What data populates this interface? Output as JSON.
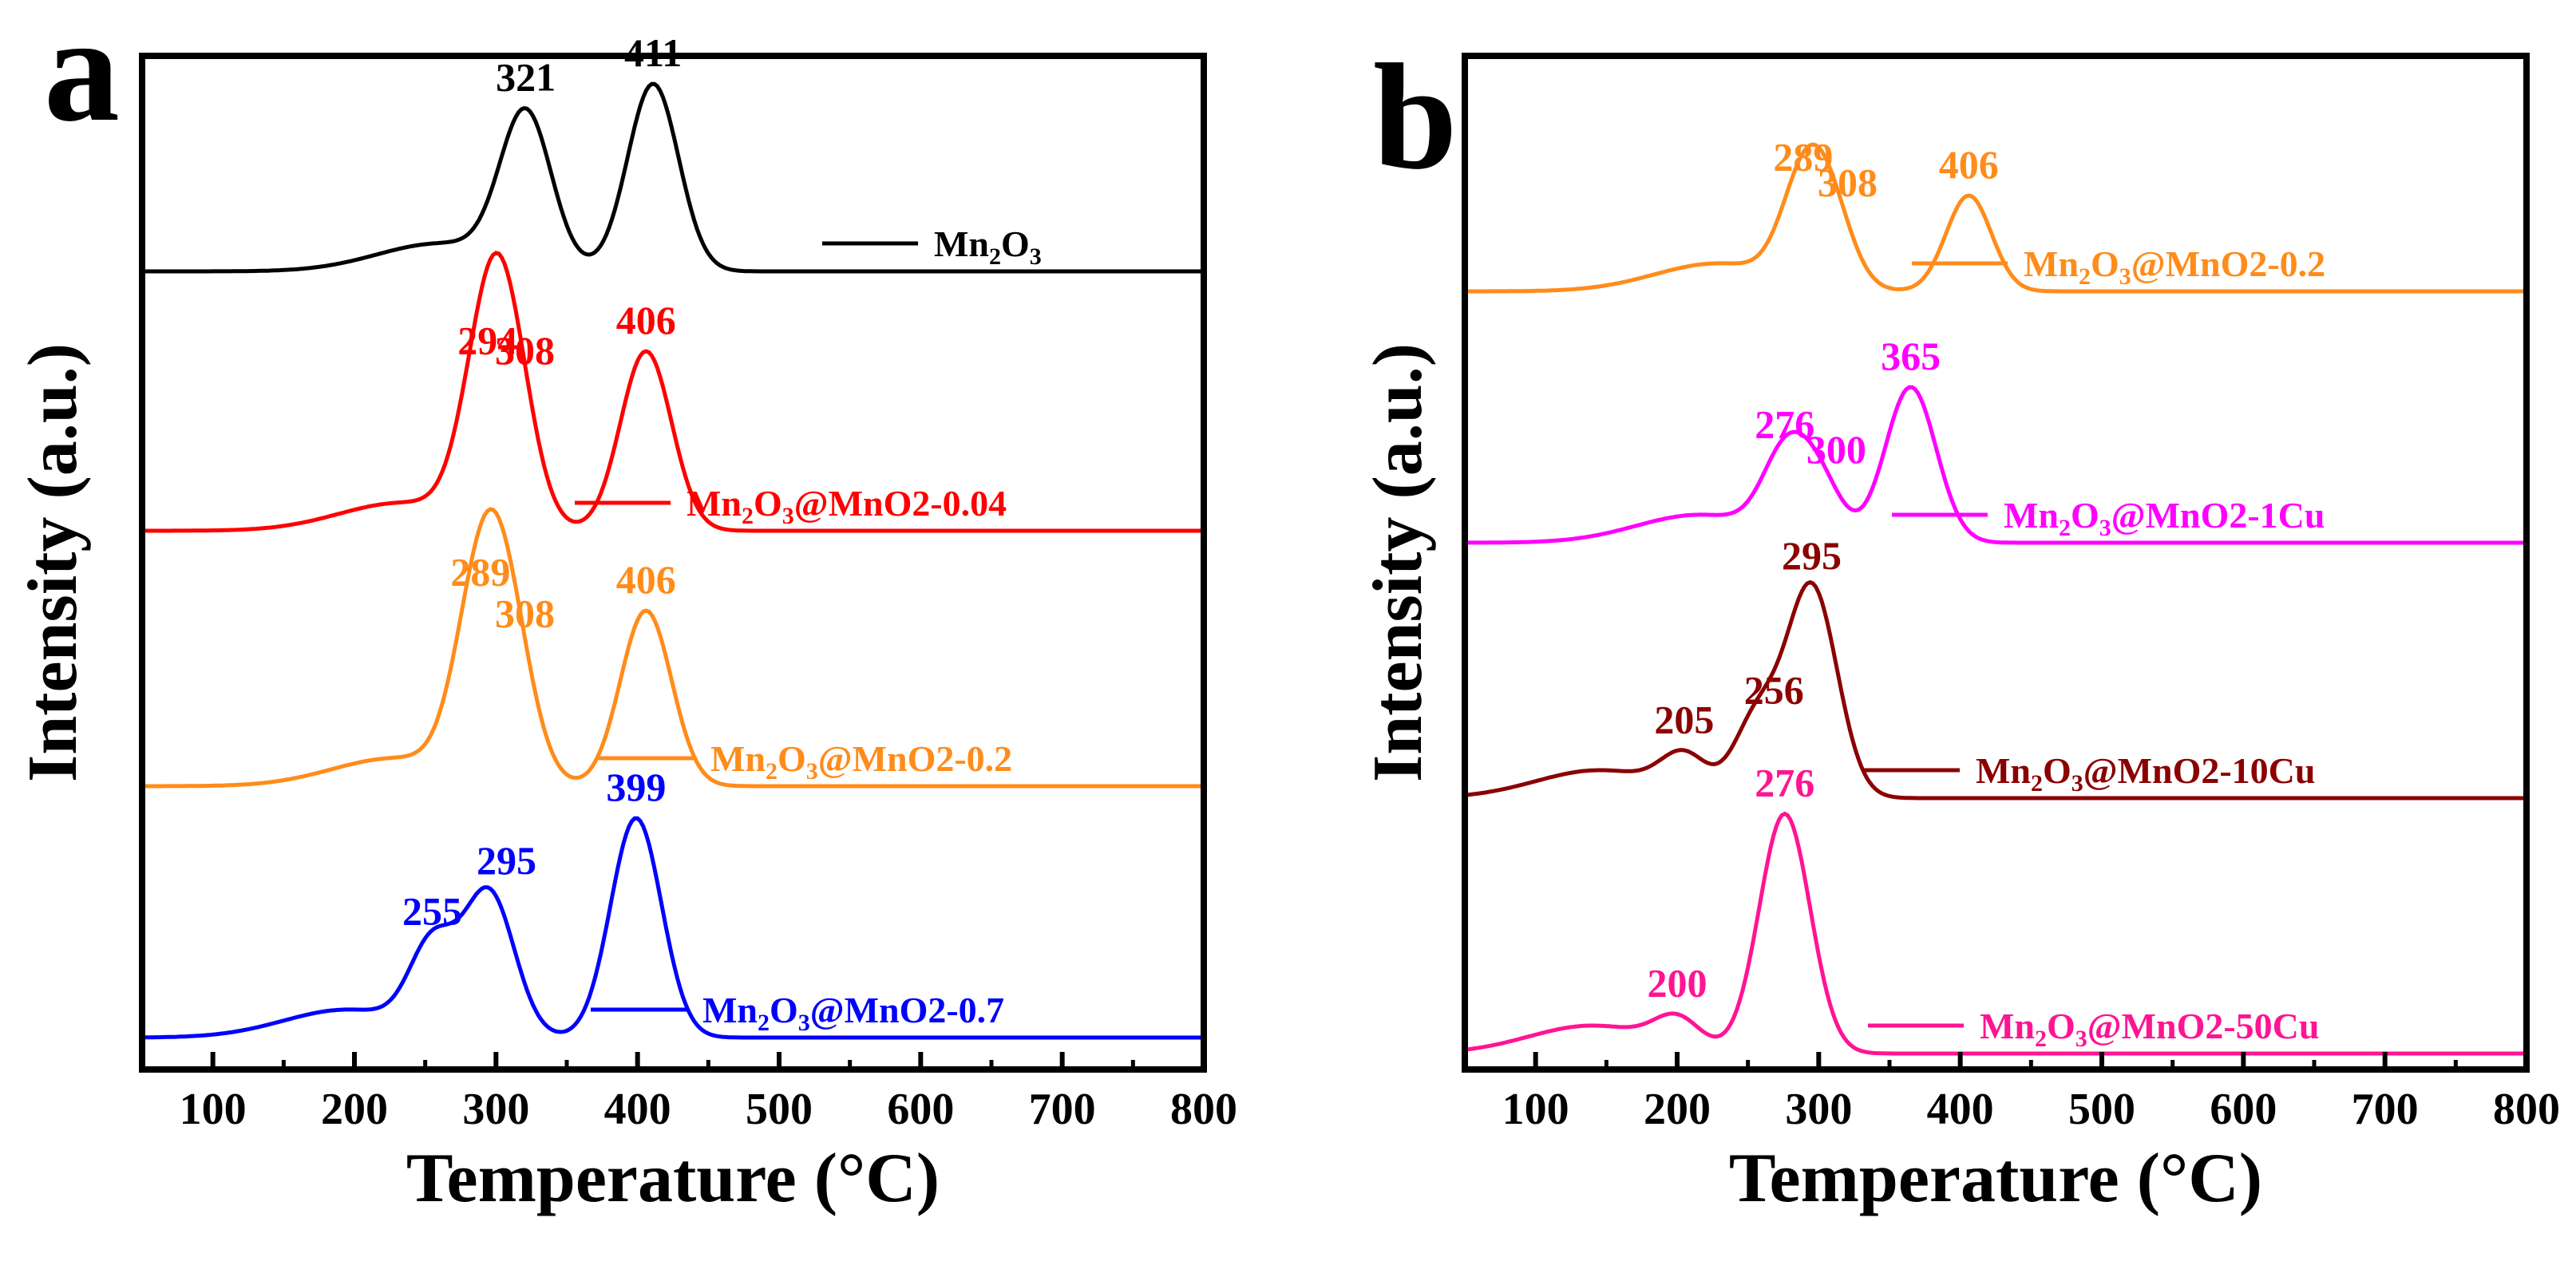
{
  "chart_data": [
    {
      "panel_label": "a",
      "type": "line",
      "xlabel": "Temperature (°C)",
      "ylabel": "Intensity (a.u.)",
      "xlim": [
        50,
        800
      ],
      "xticks": [
        "100",
        "200",
        "300",
        "400",
        "500",
        "600",
        "700",
        "800"
      ],
      "yticks": [],
      "series": [
        {
          "name": "Mn2O3",
          "legend_main": "Mn",
          "legend_sub": "2",
          "legend_tail": "O",
          "legend_sub2": "3",
          "legend_rest": "",
          "color": "#000000",
          "peaks": [
            {
              "x": 321,
              "label": "321",
              "rise": 190
            },
            {
              "x": 411,
              "label": "411",
              "rise": 235
            }
          ]
        },
        {
          "name": "Mn2O3@MnO2-0.04",
          "legend_main": "Mn",
          "legend_sub": "2",
          "legend_tail": "O",
          "legend_sub2": "3",
          "legend_rest": "@MnO2-0.04",
          "color": "#ff0000",
          "peaks": [
            {
              "x": 294,
              "label": "294",
              "rise": 185
            },
            {
              "x": 308,
              "label": "308",
              "rise": 178
            },
            {
              "x": 406,
              "label": "406",
              "rise": 225
            }
          ]
        },
        {
          "name": "Mn2O3@MnO2-0.2",
          "legend_main": "Mn",
          "legend_sub": "2",
          "legend_tail": "O",
          "legend_sub2": "3",
          "legend_rest": "@MnO2-0.2",
          "color": "#ff8c1a",
          "peaks": [
            {
              "x": 289,
              "label": "289",
              "rise": 215
            },
            {
              "x": 308,
              "label": "308",
              "rise": 170
            },
            {
              "x": 406,
              "label": "406",
              "rise": 220
            }
          ]
        },
        {
          "name": "Mn2O3@MnO2-0.7",
          "legend_main": "Mn",
          "legend_sub": "2",
          "legend_tail": "O",
          "legend_sub2": "3",
          "legend_rest": "@MnO2-0.7",
          "color": "#0000ff",
          "peaks": [
            {
              "x": 255,
              "label": "255",
              "rise": 105
            },
            {
              "x": 295,
              "label": "295",
              "rise": 180
            },
            {
              "x": 399,
              "label": "399",
              "rise": 275
            }
          ]
        }
      ]
    },
    {
      "panel_label": "b",
      "type": "line",
      "xlabel": "Temperature (°C)",
      "ylabel": "Intensity (a.u.)",
      "xlim": [
        50,
        800
      ],
      "xticks": [
        "100",
        "200",
        "300",
        "400",
        "500",
        "600",
        "700",
        "800"
      ],
      "yticks": [],
      "series": [
        {
          "name": "Mn2O3@MnO2-0.2",
          "legend_main": "Mn",
          "legend_sub": "2",
          "legend_tail": "O",
          "legend_sub2": "3",
          "legend_rest": "@MnO2-0.2",
          "color": "#ff8c1a",
          "peaks": [
            {
              "x": 289,
              "label": "289",
              "rise": 115
            },
            {
              "x": 308,
              "label": "308",
              "rise": 90
            },
            {
              "x": 406,
              "label": "406",
              "rise": 120
            }
          ]
        },
        {
          "name": "Mn2O3@MnO2-1Cu",
          "legend_main": "Mn",
          "legend_sub": "2",
          "legend_tail": "O",
          "legend_sub2": "3",
          "legend_rest": "@MnO2-1Cu",
          "color": "#ff00ff",
          "peaks": [
            {
              "x": 276,
              "label": "276",
              "rise": 95
            },
            {
              "x": 300,
              "label": "300",
              "rise": 72
            },
            {
              "x": 365,
              "label": "365",
              "rise": 195
            }
          ]
        },
        {
          "name": "Mn2O3@MnO2-10Cu",
          "legend_main": "Mn",
          "legend_sub": "2",
          "legend_tail": "O",
          "legend_sub2": "3",
          "legend_rest": "@MnO2-10Cu",
          "color": "#8b0000",
          "peaks": [
            {
              "x": 205,
              "label": "205",
              "rise": 45
            },
            {
              "x": 256,
              "label": "256",
              "rise": 95
            },
            {
              "x": 295,
              "label": "295",
              "rise": 265
            }
          ]
        },
        {
          "name": "Mn2O3@MnO2-50Cu",
          "legend_main": "Mn",
          "legend_sub": "2",
          "legend_tail": "O",
          "legend_sub2": "3",
          "legend_rest": "@MnO2-50Cu",
          "color": "#ff1493",
          "peaks": [
            {
              "x": 200,
              "label": "200",
              "rise": 35
            },
            {
              "x": 276,
              "label": "276",
              "rise": 300
            }
          ]
        }
      ]
    }
  ]
}
